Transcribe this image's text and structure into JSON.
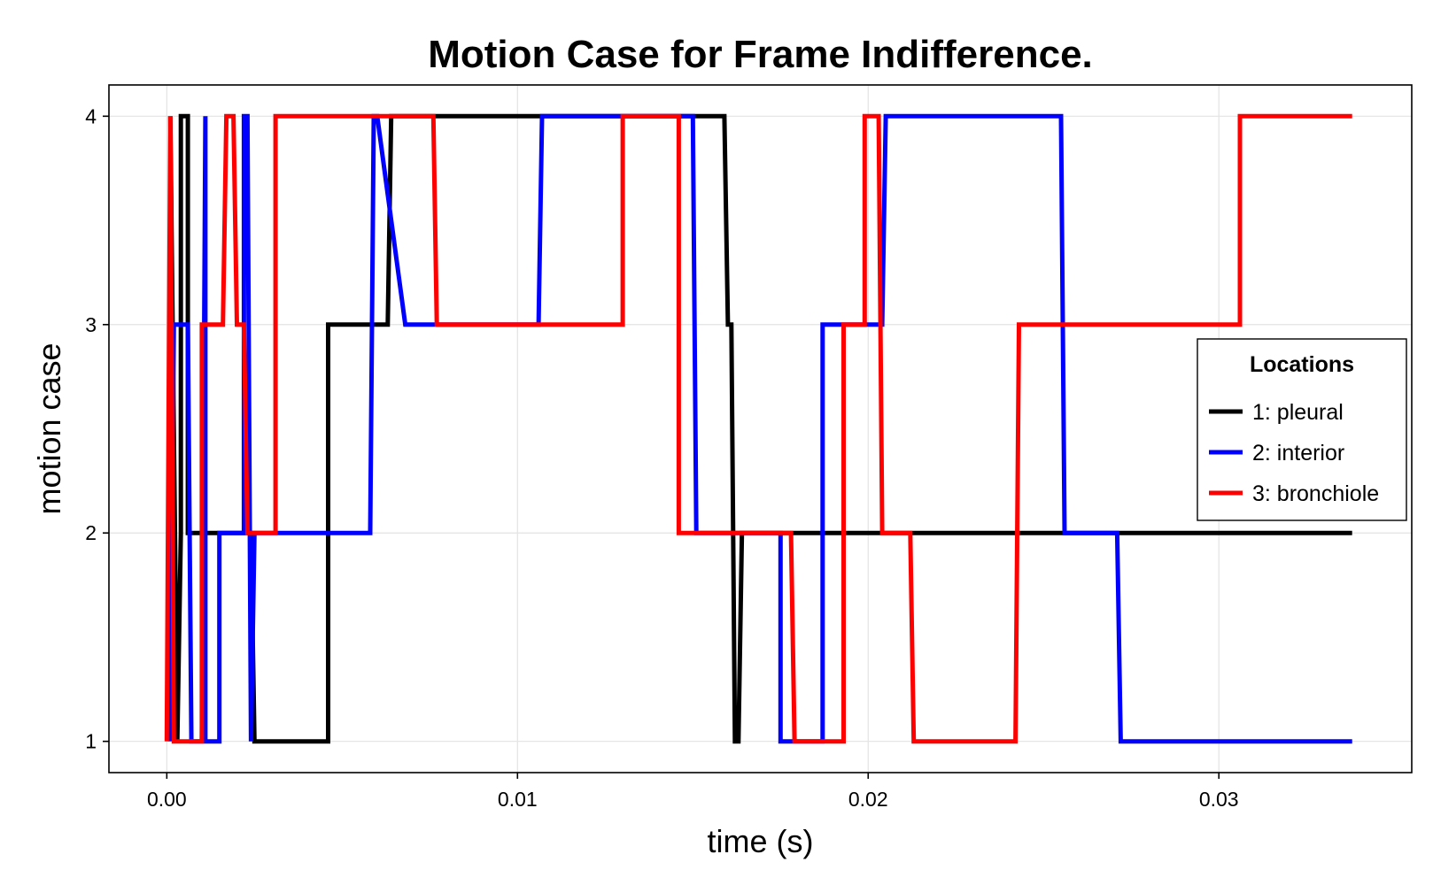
{
  "chart_data": {
    "type": "line",
    "title": "Motion Case for Frame Indifference.",
    "xlabel": "time (s)",
    "ylabel": "motion case",
    "xlim": [
      -0.00165,
      0.0355
    ],
    "ylim": [
      0.85,
      4.15
    ],
    "xticks": [
      0.0,
      0.01,
      0.02,
      0.03
    ],
    "xtick_labels": [
      "0.00",
      "0.01",
      "0.02",
      "0.03"
    ],
    "yticks": [
      1,
      2,
      3,
      4
    ],
    "ytick_labels": [
      "1",
      "2",
      "3",
      "4"
    ],
    "grid": true,
    "legend": {
      "title": "Locations",
      "position": "right",
      "entries": [
        "1: pleural",
        "2: interior",
        "3: bronchiole"
      ]
    },
    "series": [
      {
        "name": "1: pleural",
        "color": "#000000",
        "points": [
          [
            0.0001,
            4
          ],
          [
            0.0003,
            1
          ],
          [
            0.0004,
            2
          ],
          [
            0.0004,
            4
          ],
          [
            0.0006,
            4
          ],
          [
            0.0006,
            2
          ],
          [
            0.0024,
            2
          ],
          [
            0.0025,
            1
          ],
          [
            0.0046,
            1
          ],
          [
            0.0046,
            3
          ],
          [
            0.0063,
            3
          ],
          [
            0.0064,
            4
          ],
          [
            0.0159,
            4
          ],
          [
            0.016,
            3
          ],
          [
            0.0161,
            3
          ],
          [
            0.0162,
            1
          ],
          [
            0.0163,
            1
          ],
          [
            0.0164,
            2
          ],
          [
            0.0338,
            2
          ]
        ]
      },
      {
        "name": "2: interior",
        "color": "#0000ff",
        "points": [
          [
            0.0001,
            1
          ],
          [
            0.0002,
            3
          ],
          [
            0.0006,
            3
          ],
          [
            0.0007,
            1
          ],
          [
            0.001,
            1
          ],
          [
            0.0011,
            4
          ],
          [
            0.0011,
            1
          ],
          [
            0.0015,
            1
          ],
          [
            0.0015,
            2
          ],
          [
            0.0022,
            2
          ],
          [
            0.0022,
            4
          ],
          [
            0.0023,
            4
          ],
          [
            0.0024,
            1
          ],
          [
            0.0025,
            2
          ],
          [
            0.0058,
            2
          ],
          [
            0.0059,
            4
          ],
          [
            0.006,
            4
          ],
          [
            0.0068,
            3
          ],
          [
            0.0106,
            3
          ],
          [
            0.0107,
            4
          ],
          [
            0.015,
            4
          ],
          [
            0.0151,
            2
          ],
          [
            0.0175,
            2
          ],
          [
            0.0175,
            1
          ],
          [
            0.0187,
            1
          ],
          [
            0.0187,
            3
          ],
          [
            0.0204,
            3
          ],
          [
            0.0205,
            4
          ],
          [
            0.0255,
            4
          ],
          [
            0.0256,
            2
          ],
          [
            0.0271,
            2
          ],
          [
            0.0272,
            1
          ],
          [
            0.0338,
            1
          ]
        ]
      },
      {
        "name": "3: bronchiole",
        "color": "#ff0000",
        "points": [
          [
            0.0,
            1
          ],
          [
            0.0001,
            4
          ],
          [
            0.0002,
            1
          ],
          [
            0.001,
            1
          ],
          [
            0.001,
            3
          ],
          [
            0.0016,
            3
          ],
          [
            0.0017,
            4
          ],
          [
            0.0019,
            4
          ],
          [
            0.002,
            3
          ],
          [
            0.0022,
            3
          ],
          [
            0.0023,
            2
          ],
          [
            0.0031,
            2
          ],
          [
            0.0031,
            4
          ],
          [
            0.0076,
            4
          ],
          [
            0.0077,
            3
          ],
          [
            0.013,
            3
          ],
          [
            0.013,
            4
          ],
          [
            0.0146,
            4
          ],
          [
            0.0146,
            2
          ],
          [
            0.0178,
            2
          ],
          [
            0.0179,
            1
          ],
          [
            0.0193,
            1
          ],
          [
            0.0193,
            3
          ],
          [
            0.0199,
            3
          ],
          [
            0.0199,
            4
          ],
          [
            0.0203,
            4
          ],
          [
            0.0204,
            2
          ],
          [
            0.0212,
            2
          ],
          [
            0.0213,
            1
          ],
          [
            0.0242,
            1
          ],
          [
            0.0243,
            3
          ],
          [
            0.0306,
            3
          ],
          [
            0.0306,
            4
          ],
          [
            0.0338,
            4
          ]
        ]
      }
    ]
  }
}
